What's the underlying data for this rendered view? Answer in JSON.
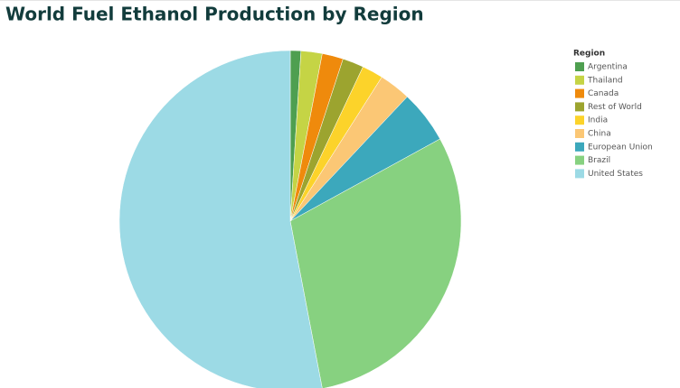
{
  "chart_data": {
    "type": "pie",
    "title": "World Fuel Ethanol Production by Region",
    "legend_title": "Region",
    "categories": [
      "Argentina",
      "Thailand",
      "Canada",
      "Rest of World",
      "India",
      "China",
      "European Union",
      "Brazil",
      "United States"
    ],
    "values": [
      1,
      2,
      2,
      2,
      2,
      3,
      5,
      30,
      53
    ],
    "colors": [
      "#4e9f50",
      "#c5d445",
      "#ef8a0c",
      "#9ca42f",
      "#fcd32a",
      "#fbc775",
      "#3ca8bc",
      "#87d180",
      "#9cdae5"
    ],
    "legend_position": "right"
  }
}
